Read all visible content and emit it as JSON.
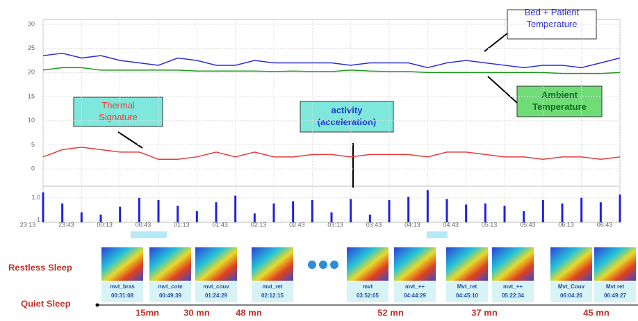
{
  "chart_data": {
    "type": "line",
    "categories": [
      "23:13",
      null,
      "23:43",
      null,
      "00:13",
      null,
      "00:43",
      null,
      "01:13",
      null,
      "01:43",
      null,
      "02:13",
      null,
      "02:43",
      null,
      "03:13",
      null,
      "03:43",
      null,
      "04:13",
      null,
      "04:43",
      null,
      "05:13",
      null,
      "05:43",
      null,
      "06:13",
      null,
      "06:43"
    ],
    "ylim": [
      -3,
      31
    ],
    "yticks": [
      0,
      5,
      10,
      15,
      20,
      25,
      30
    ],
    "y2lim": [
      -1.2,
      1.8
    ],
    "y2ticks": [
      {
        "value": 1,
        "label": "1.0"
      },
      {
        "value": -1,
        "label": "-1"
      }
    ],
    "grid": true,
    "series": [
      {
        "name": "Bed + Patient Temperature",
        "color": "#2b2bdc",
        "values": [
          23.5,
          24,
          23,
          23.5,
          22.5,
          22,
          21.5,
          23,
          22.5,
          21.5,
          21.5,
          22.5,
          22,
          22,
          22,
          22,
          21.5,
          22,
          22,
          22,
          21,
          22,
          22.5,
          22,
          21.5,
          21,
          21.5,
          21.5,
          21,
          22,
          23
        ]
      },
      {
        "name": "Ambient Temperature",
        "color": "#1a9a1a",
        "values": [
          20.5,
          21,
          21,
          20.5,
          20.5,
          20.5,
          20.5,
          20.5,
          20.3,
          20.3,
          20.3,
          20.3,
          20.2,
          20.3,
          20.2,
          20.2,
          20.5,
          20.3,
          20.2,
          20.2,
          20,
          20,
          20,
          20,
          20,
          20,
          20,
          19.8,
          19.8,
          19.8,
          20
        ]
      },
      {
        "name": "Thermal Signature",
        "color": "#e83a3a",
        "values": [
          2.5,
          4,
          4.5,
          4,
          3.5,
          3.5,
          2,
          2,
          2.5,
          3.5,
          2.5,
          3.5,
          2.5,
          2.5,
          3,
          3,
          2.5,
          3,
          3,
          3,
          2.5,
          3.5,
          3.5,
          3,
          2.5,
          2.5,
          2,
          2.5,
          2.5,
          2,
          2.5
        ]
      },
      {
        "name": "activity (acceleration)",
        "color": "#2020e0",
        "axis": "y2",
        "values": [
          1.5,
          0.5,
          -0.3,
          -0.5,
          0.2,
          1,
          0.8,
          0.3,
          -0.2,
          0.6,
          1.2,
          -0.4,
          0.5,
          0.7,
          0.8,
          -0.3,
          0.9,
          -0.5,
          0.8,
          1.1,
          1.7,
          0.9,
          0.4,
          0.5,
          0.3,
          -0.2,
          0.8,
          0.5,
          1.0,
          0.6,
          1.3
        ]
      }
    ],
    "annotations": [
      "Bed + Patient Temperature",
      "Ambient Temperature",
      "Thermal Signature",
      "activity (acceleration)"
    ]
  },
  "sleep_panel": {
    "restless_label": "Restless Sleep",
    "quiet_label": "Quiet Sleep",
    "events": [
      {
        "label": "mvt_bras",
        "time": "00:31:08"
      },
      {
        "label": "mvt_cote",
        "time": "00:49:39"
      },
      {
        "label": "mvt_couv",
        "time": "01:24:29"
      },
      {
        "label": "mvt_ret",
        "time": "02:12:15"
      },
      {
        "label": "mvt",
        "time": "03:52:05"
      },
      {
        "label": "mvt_++",
        "time": "04:44:29"
      },
      {
        "label": "Mvt_ret",
        "time": "04:45:10"
      },
      {
        "label": "mvt_++",
        "time": "05:22:34"
      },
      {
        "label": "Mvt_Couv",
        "time": "06:04:26"
      },
      {
        "label": "Mvt ret",
        "time": "06:49:27"
      }
    ],
    "durations": [
      "15mn",
      "30 mn",
      "48 mn",
      "52 mn",
      "37 mn",
      "45 mn"
    ]
  }
}
